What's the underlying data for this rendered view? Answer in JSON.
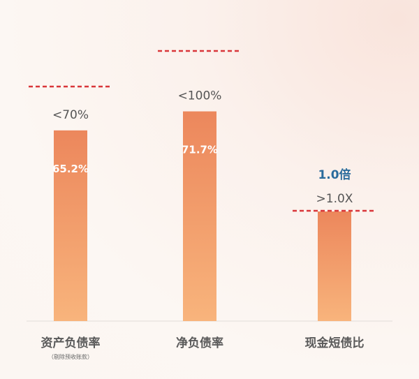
{
  "chart_data": {
    "type": "bar",
    "categories": [
      "资产负债率",
      "净负债率",
      "现金短债比"
    ],
    "category_notes": [
      "（剔除预收账款）",
      "",
      ""
    ],
    "values": [
      65.2,
      71.7,
      1.0
    ],
    "value_labels": [
      "65.2%",
      "71.7%",
      ""
    ],
    "highlight_label": "1.0倍",
    "thresholds": [
      70,
      100,
      1.0
    ],
    "threshold_labels": [
      "<70%",
      "<100%",
      ">1.0X"
    ],
    "colors": {
      "bar_top": "#ec875c",
      "bar_bottom": "#f8b47c",
      "threshold": "#d9363a",
      "highlight": "#2a6b9c",
      "label": "#555555"
    },
    "grid": false
  }
}
